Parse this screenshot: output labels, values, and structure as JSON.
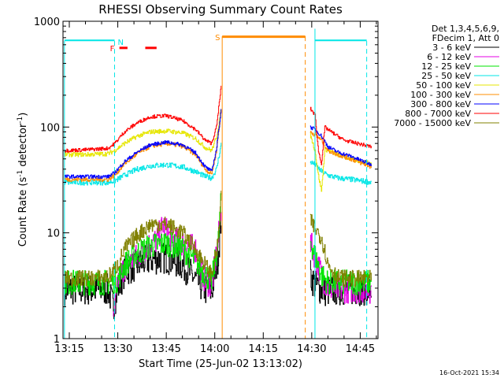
{
  "chart_data": {
    "type": "line",
    "title": "RHESSI Observing Summary Count Rates",
    "xlabel": "Start Time (25-Jun-02 13:13:02)",
    "ylabel_main": "Count Rate (s",
    "ylabel_sup1": "-1",
    "ylabel_mid": " detector",
    "ylabel_sup2": "-1",
    "ylabel_end": ")",
    "y_scale": "log",
    "ylim": [
      1,
      1000
    ],
    "xlim_minutes": [
      13.03,
      14.84
    ],
    "x_ticks": [
      {
        "label": "13:15",
        "m": 795
      },
      {
        "label": "13:30",
        "m": 810
      },
      {
        "label": "13:45",
        "m": 825
      },
      {
        "label": "14:00",
        "m": 840
      },
      {
        "label": "14:15",
        "m": 855
      },
      {
        "label": "14:30",
        "m": 870
      },
      {
        "label": "14:45",
        "m": 885
      }
    ],
    "x_range_minutes": [
      793.05,
      890.5
    ],
    "y_ticks": [
      {
        "label": "1",
        "v": 1
      },
      {
        "label": "10",
        "v": 10
      },
      {
        "label": "100",
        "v": 100
      },
      {
        "label": "1000",
        "v": 1000
      }
    ],
    "legend_header": [
      "Det 1,3,4,5,6,9,",
      "FDecim 1, Att 0"
    ],
    "series": [
      {
        "name": "3 - 6 keV",
        "color": "#000000",
        "pre": [
          [
            793.5,
            2.9
          ],
          [
            800,
            2.9
          ],
          [
            807,
            2.9
          ],
          [
            808.5,
            2.0
          ],
          [
            810,
            3.0
          ],
          [
            812,
            4.3
          ],
          [
            816,
            5.0
          ],
          [
            820,
            5.6
          ],
          [
            825,
            5.8
          ],
          [
            830,
            5.0
          ],
          [
            834,
            3.6
          ],
          [
            837,
            2.9
          ],
          [
            839,
            2.8
          ],
          [
            841,
            6.0
          ],
          [
            842,
            15.0
          ]
        ],
        "post": [
          [
            869.5,
            4.0
          ],
          [
            871,
            3.2
          ],
          [
            873,
            2.9
          ],
          [
            874,
            2.8
          ],
          [
            878,
            2.9
          ],
          [
            885,
            2.9
          ],
          [
            888.5,
            2.9
          ]
        ],
        "noise": 0.35
      },
      {
        "name": "6 - 12 keV",
        "color": "#e600e6",
        "pre": [
          [
            808.5,
            1.3
          ],
          [
            810,
            3.5
          ],
          [
            812,
            4.8
          ],
          [
            816,
            6.0
          ],
          [
            819,
            7.5
          ],
          [
            822,
            8.5
          ],
          [
            824,
            12.0
          ],
          [
            826,
            9.0
          ],
          [
            830,
            8.0
          ],
          [
            834,
            7.0
          ],
          [
            837,
            3.5
          ],
          [
            839,
            3.2
          ],
          [
            841,
            8.0
          ],
          [
            842,
            20.0
          ]
        ],
        "post": [
          [
            869.5,
            8.0
          ],
          [
            871,
            6.0
          ],
          [
            873,
            4.0
          ],
          [
            875,
            3.0
          ],
          [
            878,
            2.9
          ],
          [
            885,
            2.9
          ],
          [
            888.5,
            2.9
          ]
        ],
        "noise": 0.3
      },
      {
        "name": "12 - 25 keV",
        "color": "#00e600",
        "pre": [
          [
            793.5,
            3.4
          ],
          [
            800,
            3.4
          ],
          [
            807,
            3.4
          ],
          [
            810,
            3.6
          ],
          [
            812,
            5.0
          ],
          [
            816,
            6.5
          ],
          [
            820,
            7.5
          ],
          [
            825,
            8.0
          ],
          [
            830,
            7.0
          ],
          [
            834,
            5.5
          ],
          [
            837,
            4.0
          ],
          [
            839,
            3.5
          ],
          [
            841,
            8.0
          ],
          [
            842,
            22.0
          ]
        ],
        "post": [
          [
            869.5,
            8.5
          ],
          [
            871,
            6.0
          ],
          [
            873,
            4.0
          ],
          [
            875,
            3.4
          ],
          [
            880,
            3.4
          ],
          [
            888.5,
            3.4
          ]
        ],
        "noise": 0.28
      },
      {
        "name": "25 - 50 keV",
        "color": "#00e6e6",
        "pre": [
          [
            793.5,
            30.0
          ],
          [
            800,
            30.0
          ],
          [
            807,
            30.0
          ],
          [
            809,
            31.0
          ],
          [
            812,
            35.0
          ],
          [
            816,
            40.0
          ],
          [
            820,
            43.0
          ],
          [
            825,
            44.0
          ],
          [
            830,
            42.0
          ],
          [
            834,
            38.0
          ],
          [
            837,
            34.0
          ],
          [
            839,
            33.0
          ],
          [
            840.5,
            40.0
          ],
          [
            842,
            70.0
          ]
        ],
        "post": [
          [
            869.5,
            47.0
          ],
          [
            871,
            44.0
          ],
          [
            873,
            38.0
          ],
          [
            875,
            35.0
          ],
          [
            878,
            33.0
          ],
          [
            882,
            32.0
          ],
          [
            888.5,
            30.0
          ]
        ],
        "noise": 0.06
      },
      {
        "name": "50 - 100 keV",
        "color": "#e6e600",
        "pre": [
          [
            793.5,
            55.0
          ],
          [
            800,
            55.0
          ],
          [
            807,
            56.0
          ],
          [
            809,
            60.0
          ],
          [
            812,
            70.0
          ],
          [
            816,
            82.0
          ],
          [
            820,
            90.0
          ],
          [
            825,
            92.0
          ],
          [
            830,
            88.0
          ],
          [
            834,
            78.0
          ],
          [
            837,
            64.0
          ],
          [
            839,
            60.0
          ],
          [
            840.5,
            80.0
          ],
          [
            842,
            150.0
          ]
        ],
        "post": [
          [
            869.5,
            85.0
          ],
          [
            871,
            60.0
          ],
          [
            872,
            35.0
          ],
          [
            873,
            25.0
          ],
          [
            874,
            62.0
          ],
          [
            878,
            55.0
          ],
          [
            882,
            50.0
          ],
          [
            888.5,
            45.0
          ]
        ],
        "noise": 0.05
      },
      {
        "name": "100 - 300 keV",
        "color": "#ff8c00",
        "pre": [
          [
            793.5,
            32.0
          ],
          [
            800,
            32.0
          ],
          [
            807,
            32.0
          ],
          [
            809,
            35.0
          ],
          [
            812,
            45.0
          ],
          [
            816,
            56.0
          ],
          [
            820,
            66.0
          ],
          [
            825,
            70.0
          ],
          [
            830,
            66.0
          ],
          [
            834,
            55.0
          ],
          [
            837,
            40.0
          ],
          [
            839,
            36.0
          ],
          [
            840.5,
            60.0
          ],
          [
            842,
            150.0
          ]
        ],
        "post": [
          [
            869.5,
            90.0
          ],
          [
            871,
            85.0
          ],
          [
            873,
            75.0
          ],
          [
            875,
            60.0
          ],
          [
            878,
            55.0
          ],
          [
            882,
            50.0
          ],
          [
            888.5,
            42.0
          ]
        ],
        "noise": 0.05
      },
      {
        "name": "300 - 800 keV",
        "color": "#0000ff",
        "pre": [
          [
            793.5,
            34.0
          ],
          [
            800,
            34.0
          ],
          [
            807,
            34.0
          ],
          [
            809,
            37.0
          ],
          [
            812,
            47.0
          ],
          [
            816,
            58.0
          ],
          [
            820,
            68.0
          ],
          [
            825,
            72.0
          ],
          [
            830,
            68.0
          ],
          [
            834,
            57.0
          ],
          [
            837,
            42.0
          ],
          [
            839,
            38.0
          ],
          [
            840.5,
            62.0
          ],
          [
            842,
            155.0
          ]
        ],
        "post": [
          [
            869.5,
            100.0
          ],
          [
            871,
            95.0
          ],
          [
            873,
            82.0
          ],
          [
            875,
            65.0
          ],
          [
            878,
            58.0
          ],
          [
            882,
            53.0
          ],
          [
            888.5,
            44.0
          ]
        ],
        "noise": 0.04
      },
      {
        "name": "800 - 7000 keV",
        "color": "#ff0000",
        "pre": [
          [
            793.5,
            60.0
          ],
          [
            800,
            61.0
          ],
          [
            807,
            63.0
          ],
          [
            809,
            70.0
          ],
          [
            812,
            90.0
          ],
          [
            816,
            110.0
          ],
          [
            820,
            125.0
          ],
          [
            825,
            128.0
          ],
          [
            830,
            115.0
          ],
          [
            834,
            95.0
          ],
          [
            837,
            75.0
          ],
          [
            839,
            70.0
          ],
          [
            840.5,
            100.0
          ],
          [
            842,
            250.0
          ]
        ],
        "post": [
          [
            869.5,
            150.0
          ],
          [
            871,
            130.0
          ],
          [
            872,
            60.0
          ],
          [
            873,
            45.0
          ],
          [
            874,
            100.0
          ],
          [
            876,
            90.0
          ],
          [
            880,
            75.0
          ],
          [
            888.5,
            65.0
          ]
        ],
        "noise": 0.04
      },
      {
        "name": "7000 - 15000 keV",
        "color": "#808000",
        "pre": [
          [
            793.5,
            3.7
          ],
          [
            800,
            3.7
          ],
          [
            807,
            3.8
          ],
          [
            810,
            5.0
          ],
          [
            812,
            7.0
          ],
          [
            816,
            9.5
          ],
          [
            820,
            12.0
          ],
          [
            825,
            12.0
          ],
          [
            830,
            10.0
          ],
          [
            834,
            7.0
          ],
          [
            837,
            5.0
          ],
          [
            839,
            4.0
          ],
          [
            841,
            8.0
          ],
          [
            842,
            25.0
          ]
        ],
        "post": [
          [
            869.5,
            13.0
          ],
          [
            871,
            11.0
          ],
          [
            873,
            9.0
          ],
          [
            875,
            5.0
          ],
          [
            878,
            3.8
          ],
          [
            882,
            3.7
          ],
          [
            888.5,
            3.7
          ]
        ],
        "noise": 0.18
      }
    ],
    "time_markers": [
      {
        "label": "N",
        "color": "#00e6e6",
        "x": 809.0,
        "y_top": 650,
        "style": "dash"
      },
      {
        "label": "",
        "color": "#00e6e6",
        "x": 793.5,
        "y_top": 650,
        "style": "solid"
      },
      {
        "label": "",
        "color": "#00e6e6",
        "x": 871.0,
        "y_top": 850,
        "style": "solid"
      },
      {
        "label": "",
        "color": "#00e6e6",
        "x": 887.0,
        "y_top": 650,
        "style": "dash"
      },
      {
        "label": "S",
        "color": "#ff8c00",
        "x": 842.3,
        "y_top": 720,
        "style": "solid"
      },
      {
        "label": "",
        "color": "#ff8c00",
        "x": 868.0,
        "y_top": 720,
        "style": "dash"
      }
    ],
    "horizontal_segments": [
      {
        "color": "#00e6e6",
        "x1": 793.5,
        "x2": 809.0,
        "y": 660
      },
      {
        "color": "#00e6e6",
        "x1": 871.0,
        "x2": 887.0,
        "y": 660
      },
      {
        "color": "#ff8c00",
        "x1": 842.3,
        "x2": 868.0,
        "y": 715
      }
    ],
    "flare_marker": {
      "label": "F",
      "color": "#ff0000",
      "y": 560,
      "dashes": [
        [
          810.5,
          813.0
        ],
        [
          818.5,
          822.0
        ]
      ]
    },
    "footer": "16-Oct-2021 15:34"
  }
}
